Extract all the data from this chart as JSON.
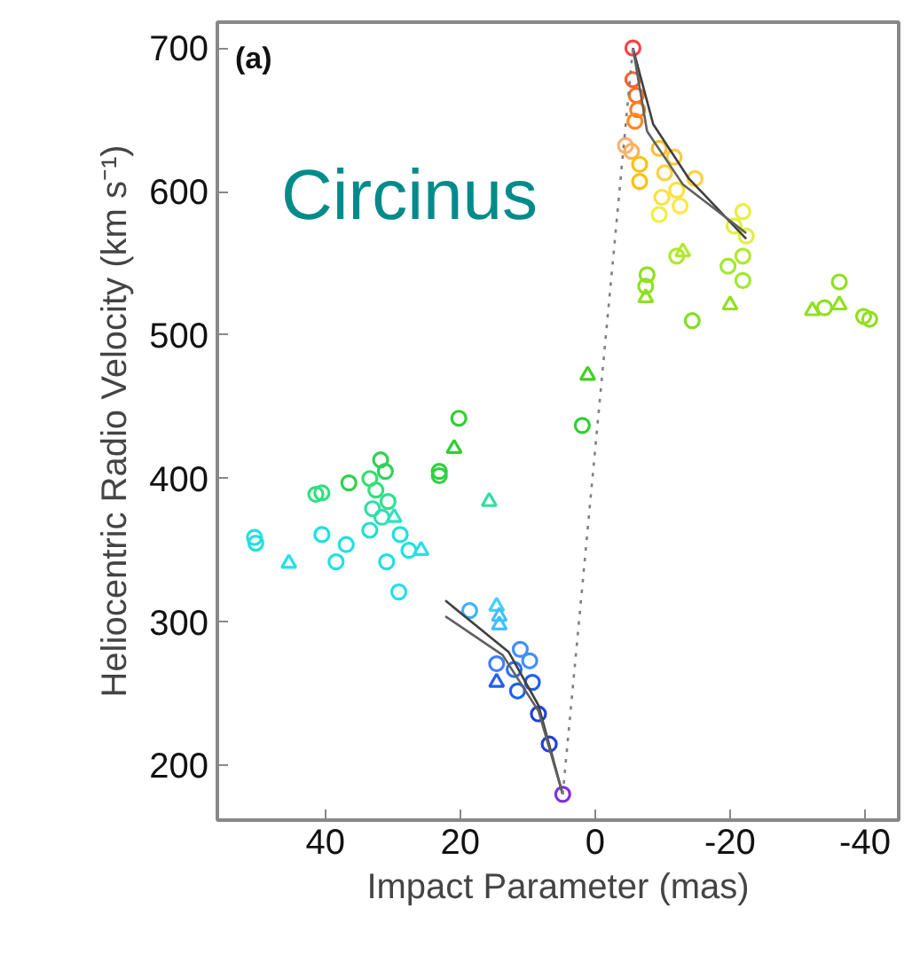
{
  "chart_data": {
    "type": "scatter",
    "xlabel": "Impact Parameter (mas)",
    "ylabel": "Heliocentric Radio Velocity (km s⁻¹)",
    "annotations": [
      "(a)",
      "Circinus"
    ],
    "xlim": [
      56,
      -45
    ],
    "ylim": [
      162,
      718
    ],
    "xticks": [
      40,
      20,
      0,
      -20,
      -40
    ],
    "yticks": [
      200,
      300,
      400,
      500,
      600,
      700
    ],
    "grid": false,
    "series": [
      {
        "marker": "circle",
        "x": [
          -5.6,
          -5.6,
          -6.1,
          -6.3,
          -5.9,
          -4.5,
          -5.4,
          -6.6,
          -6.6,
          -9.5,
          -11.7,
          -10.3,
          -14.8,
          -12.1,
          -9.9,
          -12.6,
          -9.5,
          -21.9,
          -20.6,
          -22.4,
          -12.1,
          -7.7,
          -7.5,
          -19.7,
          -21.9,
          -21.9,
          -14.4,
          -34,
          -36.2,
          -39.8,
          -40.7,
          1.9,
          20.2,
          23.1,
          23.1,
          31.8,
          31.1,
          33.4,
          36.5,
          40.5,
          41.4,
          32.5,
          30.7,
          33,
          31.6,
          50.5,
          50.3,
          40.5,
          36.9,
          38.4,
          33.4,
          30.9,
          28.9,
          29.1,
          27.6,
          18.6,
          11.1,
          9.7,
          14.6,
          12,
          11.5,
          9.3,
          8.4,
          6.8,
          4.8
        ],
        "values": [
          700,
          678,
          667,
          657,
          649,
          632,
          628,
          619,
          607,
          630,
          624,
          613,
          609,
          601,
          596,
          590,
          584,
          586,
          576,
          569,
          555,
          542,
          534,
          548,
          555,
          538,
          510,
          519,
          537,
          513,
          511,
          437,
          442,
          405,
          402,
          413,
          405,
          400,
          397,
          390,
          389,
          392,
          384,
          379,
          373,
          359,
          355,
          361,
          354,
          342,
          364,
          342,
          361,
          321,
          350,
          308,
          281,
          273,
          271,
          267,
          252,
          258,
          236,
          215,
          180
        ],
        "colors": [
          "#ff4040",
          "#ff6030",
          "#ff7020",
          "#ff7f20",
          "#ff8a20",
          "#ffb070",
          "#ffb060",
          "#ffc000",
          "#ffc000",
          "#ffc030",
          "#ffc840",
          "#ffd040",
          "#ffd040",
          "#ffe040",
          "#ffe040",
          "#ffe840",
          "#f0f040",
          "#e8f040",
          "#e0f040",
          "#e0f040",
          "#b0e830",
          "#90e020",
          "#90e020",
          "#a0e830",
          "#b0e830",
          "#a0e830",
          "#80e020",
          "#90e020",
          "#90e020",
          "#90e020",
          "#90e020",
          "#30d030",
          "#30d030",
          "#30d040",
          "#30d040",
          "#30d050",
          "#30d060",
          "#30e070",
          "#30d050",
          "#30e080",
          "#30e080",
          "#30e080",
          "#30e090",
          "#30e0a0",
          "#30e0b0",
          "#20e0e0",
          "#20e0e0",
          "#20e0e0",
          "#20e0e0",
          "#20e0e0",
          "#20e0d0",
          "#20e0e0",
          "#20e0e0",
          "#20e0f0",
          "#20e0e0",
          "#40b0ff",
          "#4090ff",
          "#4090ff",
          "#4080ff",
          "#3070f0",
          "#2060f0",
          "#2060f0",
          "#2040e0",
          "#2040e0",
          "#8030e0"
        ]
      },
      {
        "marker": "triangle",
        "x": [
          -13,
          -7.5,
          -20,
          -32.2,
          -36.2,
          1.1,
          20.9,
          15.7,
          29.8,
          45.4,
          25.8,
          14.6,
          14.2,
          14.2,
          14.6
        ],
        "values": [
          558,
          526,
          521,
          517,
          521,
          472,
          421,
          384,
          373,
          341,
          350,
          311,
          304,
          298,
          258
        ],
        "colors": [
          "#b0e830",
          "#90e020",
          "#90e020",
          "#90e020",
          "#90e020",
          "#40d020",
          "#30d030",
          "#30e0a0",
          "#30e0c0",
          "#20e0f0",
          "#20e0f0",
          "#40d0ff",
          "#40c0ff",
          "#40c0ff",
          "#2060f0"
        ]
      },
      {
        "type": "line",
        "color": "#404040",
        "line_style": "solid",
        "x": [
          22.2,
          12.8,
          8.4,
          4.8
        ],
        "values": [
          315,
          279,
          242,
          180
        ]
      },
      {
        "type": "line",
        "color": "#606060",
        "line_style": "solid",
        "x": [
          22.2,
          13.7,
          8.4,
          4.8
        ],
        "values": [
          304,
          277,
          238,
          180
        ]
      },
      {
        "type": "line",
        "color": "#404040",
        "line_style": "solid",
        "x": [
          -5.6,
          -8.6,
          -13.9,
          -22.4
        ],
        "values": [
          700,
          647,
          609,
          567
        ]
      },
      {
        "type": "line",
        "color": "#606060",
        "line_style": "solid",
        "x": [
          -5.6,
          -7.7,
          -13,
          -22.4
        ],
        "values": [
          700,
          642,
          605,
          571
        ]
      },
      {
        "type": "line",
        "color": "#808080",
        "line_style": "dotted",
        "x": [
          4.8,
          -5.6
        ],
        "values": [
          180,
          700
        ]
      }
    ]
  }
}
